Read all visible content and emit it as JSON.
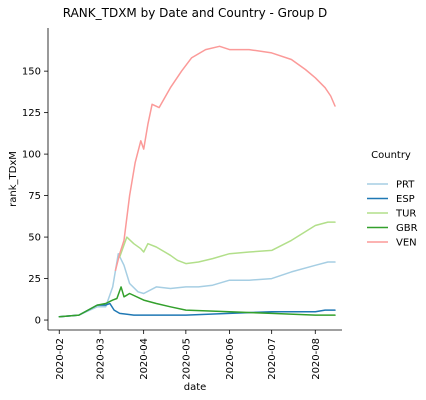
{
  "chart_data": {
    "type": "line",
    "title": "RANK_TDXM by Date and Country - Group D",
    "xlabel": "date",
    "ylabel": "rank_TDxM",
    "x_range": [
      "2020-01-24",
      "2020-08-20"
    ],
    "ylim": [
      -6,
      176
    ],
    "x_ticks": [
      "2020-02",
      "2020-03",
      "2020-04",
      "2020-05",
      "2020-06",
      "2020-07",
      "2020-08"
    ],
    "y_ticks": [
      0,
      25,
      50,
      75,
      100,
      125,
      150
    ],
    "grid": false,
    "legend": {
      "title": "Country",
      "position": "right"
    },
    "series": [
      {
        "name": "PRT",
        "color": "#a6cee3",
        "points": [
          [
            "2020-02-01",
            2
          ],
          [
            "2020-02-15",
            3
          ],
          [
            "2020-02-28",
            8
          ],
          [
            "2020-03-05",
            8
          ],
          [
            "2020-03-10",
            20
          ],
          [
            "2020-03-14",
            40
          ],
          [
            "2020-03-18",
            33
          ],
          [
            "2020-03-22",
            22
          ],
          [
            "2020-03-28",
            17
          ],
          [
            "2020-04-01",
            16
          ],
          [
            "2020-04-10",
            20
          ],
          [
            "2020-04-20",
            19
          ],
          [
            "2020-05-01",
            20
          ],
          [
            "2020-05-10",
            20
          ],
          [
            "2020-05-20",
            21
          ],
          [
            "2020-06-01",
            24
          ],
          [
            "2020-06-15",
            24
          ],
          [
            "2020-07-01",
            25
          ],
          [
            "2020-07-15",
            29
          ],
          [
            "2020-08-01",
            33
          ],
          [
            "2020-08-10",
            35
          ],
          [
            "2020-08-15",
            35
          ]
        ]
      },
      {
        "name": "ESP",
        "color": "#1f78b4",
        "points": [
          [
            "2020-02-01",
            2
          ],
          [
            "2020-02-15",
            3
          ],
          [
            "2020-02-28",
            9
          ],
          [
            "2020-03-05",
            9
          ],
          [
            "2020-03-08",
            10
          ],
          [
            "2020-03-11",
            6
          ],
          [
            "2020-03-15",
            4
          ],
          [
            "2020-03-25",
            3
          ],
          [
            "2020-04-05",
            3
          ],
          [
            "2020-04-15",
            3
          ],
          [
            "2020-05-01",
            3
          ],
          [
            "2020-06-01",
            4
          ],
          [
            "2020-07-01",
            5
          ],
          [
            "2020-08-01",
            5
          ],
          [
            "2020-08-08",
            6
          ],
          [
            "2020-08-15",
            6
          ]
        ]
      },
      {
        "name": "TUR",
        "color": "#b2df8a",
        "points": [
          [
            "2020-03-15",
            38
          ],
          [
            "2020-03-20",
            50
          ],
          [
            "2020-03-25",
            46
          ],
          [
            "2020-03-30",
            43
          ],
          [
            "2020-04-01",
            41
          ],
          [
            "2020-04-04",
            46
          ],
          [
            "2020-04-10",
            44
          ],
          [
            "2020-04-20",
            39
          ],
          [
            "2020-04-25",
            36
          ],
          [
            "2020-05-01",
            34
          ],
          [
            "2020-05-10",
            35
          ],
          [
            "2020-05-20",
            37
          ],
          [
            "2020-06-01",
            40
          ],
          [
            "2020-06-15",
            41
          ],
          [
            "2020-07-01",
            42
          ],
          [
            "2020-07-15",
            48
          ],
          [
            "2020-08-01",
            57
          ],
          [
            "2020-08-10",
            59
          ],
          [
            "2020-08-15",
            59
          ]
        ]
      },
      {
        "name": "GBR",
        "color": "#33a02c",
        "points": [
          [
            "2020-02-01",
            2
          ],
          [
            "2020-02-15",
            3
          ],
          [
            "2020-02-28",
            9
          ],
          [
            "2020-03-05",
            10
          ],
          [
            "2020-03-10",
            12
          ],
          [
            "2020-03-13",
            13
          ],
          [
            "2020-03-16",
            20
          ],
          [
            "2020-03-18",
            14
          ],
          [
            "2020-03-22",
            16
          ],
          [
            "2020-04-01",
            12
          ],
          [
            "2020-04-10",
            10
          ],
          [
            "2020-04-20",
            8
          ],
          [
            "2020-05-01",
            6
          ],
          [
            "2020-06-01",
            5
          ],
          [
            "2020-07-01",
            4
          ],
          [
            "2020-08-01",
            3
          ],
          [
            "2020-08-15",
            3
          ]
        ]
      },
      {
        "name": "VEN",
        "color": "#fb9a99",
        "points": [
          [
            "2020-03-12",
            30
          ],
          [
            "2020-03-15",
            40
          ],
          [
            "2020-03-18",
            48
          ],
          [
            "2020-03-22",
            75
          ],
          [
            "2020-03-26",
            95
          ],
          [
            "2020-03-30",
            108
          ],
          [
            "2020-04-01",
            103
          ],
          [
            "2020-04-04",
            118
          ],
          [
            "2020-04-07",
            130
          ],
          [
            "2020-04-12",
            128
          ],
          [
            "2020-04-20",
            140
          ],
          [
            "2020-04-28",
            150
          ],
          [
            "2020-05-05",
            158
          ],
          [
            "2020-05-15",
            163
          ],
          [
            "2020-05-25",
            165
          ],
          [
            "2020-06-01",
            163
          ],
          [
            "2020-06-15",
            163
          ],
          [
            "2020-07-01",
            161
          ],
          [
            "2020-07-15",
            157
          ],
          [
            "2020-07-25",
            151
          ],
          [
            "2020-08-01",
            146
          ],
          [
            "2020-08-08",
            140
          ],
          [
            "2020-08-12",
            135
          ],
          [
            "2020-08-15",
            129
          ]
        ]
      }
    ]
  }
}
